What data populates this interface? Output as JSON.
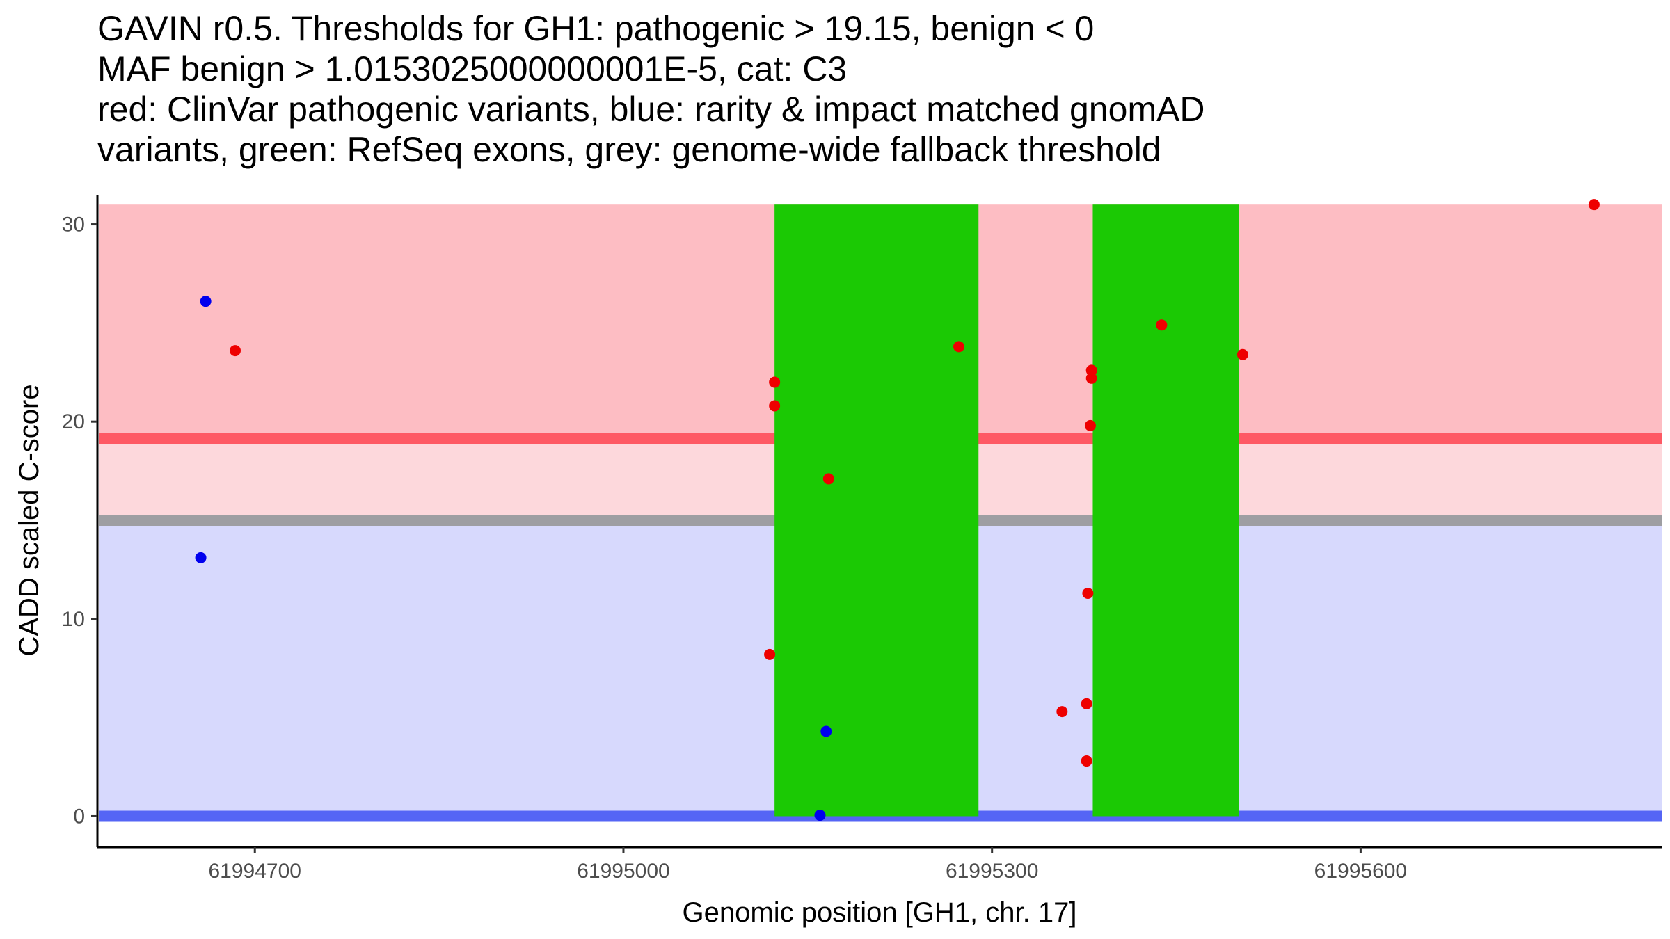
{
  "chart_data": {
    "type": "scatter",
    "title_lines": [
      "GAVIN r0.5. Thresholds for GH1: pathogenic > 19.15, benign < 0",
      "MAF benign > 1.0153025000000001E-5, cat: C3",
      "red: ClinVar pathogenic variants, blue: rarity & impact matched gnomAD",
      "variants, green: RefSeq exons, grey: genome-wide fallback threshold"
    ],
    "xlabel": "Genomic position [GH1, chr. 17]",
    "ylabel": "CADD scaled C-score",
    "xlim": [
      61994573,
      61995845
    ],
    "ylim": [
      -1.5,
      31.5
    ],
    "x_ticks": [
      61994700,
      61995000,
      61995300,
      61995600
    ],
    "x_tick_labels": [
      "61994700",
      "61995000",
      "61995300",
      "61995600"
    ],
    "y_ticks": [
      0,
      10,
      20,
      30
    ],
    "y_tick_labels": [
      "0",
      "10",
      "20",
      "30"
    ],
    "bands": [
      {
        "name": "pathogenic-region",
        "y0": 19.15,
        "y1": 31.0,
        "color": "#fdbdc3"
      },
      {
        "name": "intermediate-region",
        "y0": 15.0,
        "y1": 19.15,
        "color": "#fdd8dc"
      },
      {
        "name": "benign-region",
        "y0": 0.0,
        "y1": 15.0,
        "color": "#d7d9fd"
      }
    ],
    "threshold_lines": [
      {
        "name": "pathogenic-threshold",
        "y": 19.15,
        "color": "#fe5964"
      },
      {
        "name": "fallback-threshold",
        "y": 15.0,
        "color": "#9e9ea2"
      },
      {
        "name": "benign-threshold",
        "y": 0.0,
        "color": "#5565f5"
      }
    ],
    "exons": [
      {
        "start": 61995123,
        "end": 61995289,
        "y0": 0,
        "y1": 31,
        "color": "#1bc904"
      },
      {
        "start": 61995382,
        "end": 61995501,
        "y0": 0,
        "y1": 31,
        "color": "#1bc904"
      }
    ],
    "series": [
      {
        "name": "ClinVar pathogenic variants",
        "color": "#ee0000",
        "points": [
          {
            "x": 61994684,
            "y": 23.6
          },
          {
            "x": 61995119,
            "y": 8.2
          },
          {
            "x": 61995123,
            "y": 22.0
          },
          {
            "x": 61995123,
            "y": 20.8
          },
          {
            "x": 61995167,
            "y": 17.1
          },
          {
            "x": 61995273,
            "y": 23.8
          },
          {
            "x": 61995357,
            "y": 5.3
          },
          {
            "x": 61995377,
            "y": 2.8
          },
          {
            "x": 61995377,
            "y": 5.7
          },
          {
            "x": 61995378,
            "y": 11.3
          },
          {
            "x": 61995380,
            "y": 19.8
          },
          {
            "x": 61995381,
            "y": 22.6
          },
          {
            "x": 61995381,
            "y": 22.2
          },
          {
            "x": 61995438,
            "y": 24.9
          },
          {
            "x": 61995504,
            "y": 23.4
          },
          {
            "x": 61995790,
            "y": 31.0
          }
        ]
      },
      {
        "name": "rarity & impact matched gnomAD variants",
        "color": "#0000ee",
        "points": [
          {
            "x": 61994660,
            "y": 26.1
          },
          {
            "x": 61994656,
            "y": 13.1
          },
          {
            "x": 61995165,
            "y": 4.3
          },
          {
            "x": 61995160,
            "y": 0.05
          }
        ]
      }
    ]
  }
}
